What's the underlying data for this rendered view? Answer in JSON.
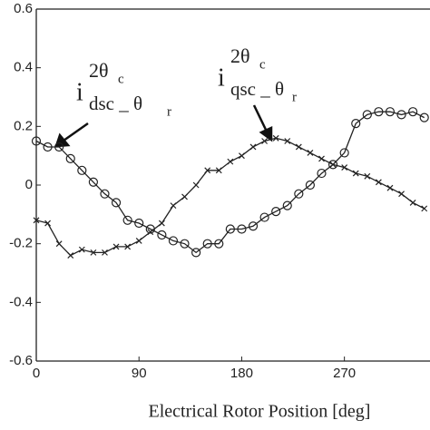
{
  "chart_data": {
    "type": "line",
    "x_label": "Electrical Rotor Position [deg]",
    "x": [
      0,
      10,
      20,
      30,
      40,
      50,
      60,
      70,
      80,
      90,
      100,
      110,
      120,
      130,
      140,
      150,
      160,
      170,
      180,
      190,
      200,
      210,
      220,
      230,
      240,
      250,
      260,
      270,
      280,
      290,
      300,
      310,
      320,
      330,
      340
    ],
    "series": [
      {
        "name": "dsc",
        "color": "#222222",
        "marker": "circle",
        "values": [
          0.15,
          0.13,
          0.13,
          0.09,
          0.05,
          0.01,
          -0.03,
          -0.06,
          -0.12,
          -0.13,
          -0.15,
          -0.17,
          -0.19,
          -0.2,
          -0.23,
          -0.2,
          -0.2,
          -0.15,
          -0.15,
          -0.14,
          -0.11,
          -0.09,
          -0.07,
          -0.03,
          0.0,
          0.04,
          0.07,
          0.11,
          0.21,
          0.24,
          0.25,
          0.25,
          0.24,
          0.25,
          0.23
        ]
      },
      {
        "name": "qsc",
        "color": "#222222",
        "marker": "x",
        "values": [
          -0.12,
          -0.13,
          -0.2,
          -0.24,
          -0.22,
          -0.23,
          -0.23,
          -0.21,
          -0.21,
          -0.19,
          -0.16,
          -0.13,
          -0.07,
          -0.04,
          0.0,
          0.05,
          0.05,
          0.08,
          0.1,
          0.13,
          0.15,
          0.16,
          0.15,
          0.13,
          0.11,
          0.09,
          0.07,
          0.06,
          0.04,
          0.03,
          0.01,
          -0.01,
          -0.03,
          -0.06,
          -0.08
        ]
      }
    ],
    "annotations": [
      {
        "base": "i",
        "sup": "2θ",
        "sup_sub": "c",
        "sub": "dsc _ θ",
        "sub_sub": "r"
      },
      {
        "base": "i",
        "sup": "2θ",
        "sup_sub": "c",
        "sub": "qsc _ θ",
        "sub_sub": "r"
      }
    ],
    "xlim": [
      0,
      345
    ],
    "xticks": [
      0,
      90,
      180,
      270
    ],
    "ylim": [
      -0.6,
      0.6
    ],
    "yticks": [
      0.6,
      0.4,
      0.2,
      0,
      -0.2,
      -0.4,
      -0.6
    ]
  }
}
